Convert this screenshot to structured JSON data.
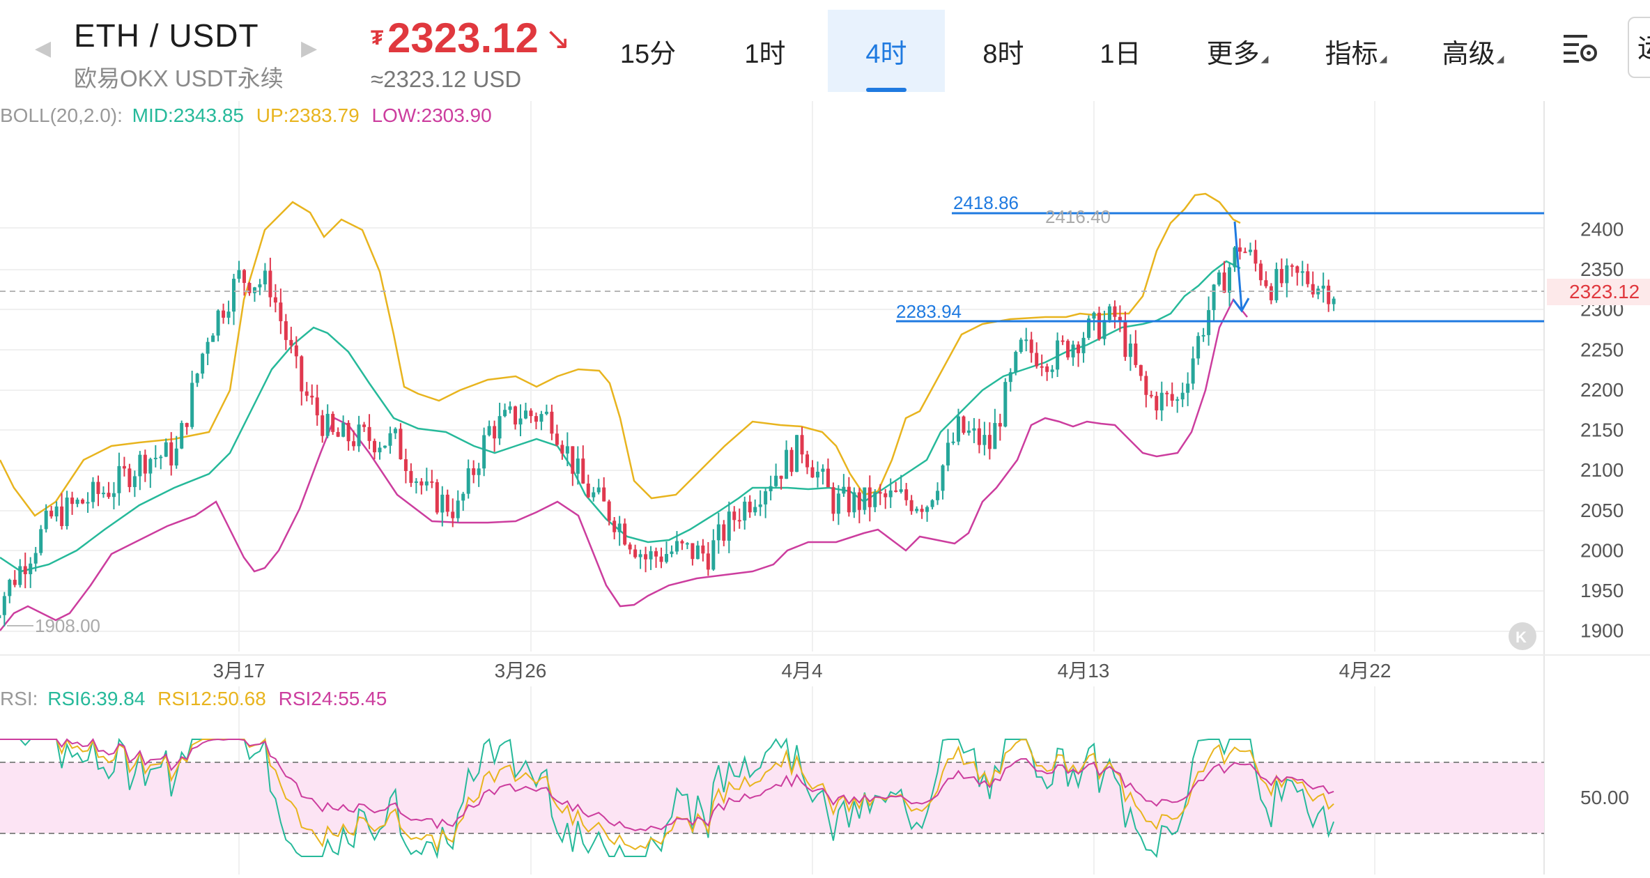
{
  "header": {
    "pair": "ETH / USDT",
    "subtitle": "欧易OKX USDT永续",
    "price": "2323.12",
    "currency_symbol": "₮",
    "price_direction": "↘",
    "price_usd": "≈2323.12 USD",
    "edge_label": "运",
    "colors": {
      "price": "#e0383e",
      "accent": "#1f7ae0"
    }
  },
  "tabs": [
    {
      "label": "15分",
      "active": false
    },
    {
      "label": "1时",
      "active": false
    },
    {
      "label": "4时",
      "active": true
    },
    {
      "label": "8时",
      "active": false
    },
    {
      "label": "1日",
      "active": false
    },
    {
      "label": "更多",
      "active": false,
      "caret": true
    },
    {
      "label": "指标",
      "active": false,
      "caret": true
    },
    {
      "label": "高级",
      "active": false,
      "caret": true
    }
  ],
  "icons": [
    "chevron-left-icon",
    "chevron-right-icon",
    "chart-settings-icon",
    "collapse-icon"
  ],
  "boll": {
    "label": "BOLL(20,2.0):",
    "mid": "MID:2343.85",
    "up": "UP:2383.79",
    "low": "LOW:2303.90",
    "colors": {
      "label": "#999999",
      "mid": "#26b99a",
      "up": "#e8b41e",
      "low": "#cc3d9e"
    }
  },
  "rsi": {
    "label": "RSI:",
    "rsi6": "RSI6:39.84",
    "rsi12": "RSI12:50.68",
    "rsi24": "RSI24:55.45",
    "level_label": "50.00",
    "colors": {
      "rsi6": "#26b99a",
      "rsi12": "#e8b41e",
      "rsi24": "#cc3d9e",
      "band": "#fce4f4"
    }
  },
  "annotations": {
    "resistance": "2418.86",
    "high_marker": "2416.40",
    "support": "2283.94",
    "low_marker": "1908.00",
    "current_tag": "2323.12"
  },
  "chart_data": {
    "type": "line",
    "title": "",
    "xlabel": "",
    "ylabel": "",
    "x_ticks": [
      "3月17",
      "3月26",
      "4月4",
      "4月13",
      "4月22"
    ],
    "y_ticks": [
      2400,
      2350,
      2300,
      2250,
      2200,
      2150,
      2100,
      2050,
      2000,
      1950,
      1900
    ],
    "ylim": [
      1878,
      2460
    ],
    "interval": "4时",
    "colors": {
      "up": "#26a69a",
      "down": "#e0384e"
    },
    "x_label_dates": [
      {
        "date": "2024-03-17",
        "label": "3月17"
      },
      {
        "date": "2024-03-26",
        "label": "3月26"
      },
      {
        "date": "2024-04-04",
        "label": "4月4"
      },
      {
        "date": "2024-04-13",
        "label": "4月13"
      },
      {
        "date": "2024-04-22",
        "label": "4月22"
      }
    ],
    "close_trend": [
      {
        "date": "2024-03-09",
        "close": 1915
      },
      {
        "date": "2024-03-11",
        "close": 2040
      },
      {
        "date": "2024-03-13",
        "close": 2080
      },
      {
        "date": "2024-03-14",
        "close": 2115
      },
      {
        "date": "2024-03-15",
        "close": 2120
      },
      {
        "date": "2024-03-16",
        "close": 2270
      },
      {
        "date": "2024-03-17",
        "close": 2340
      },
      {
        "date": "2024-03-18",
        "close": 2330
      },
      {
        "date": "2024-03-19",
        "close": 2200
      },
      {
        "date": "2024-03-20",
        "close": 2140
      },
      {
        "date": "2024-03-21",
        "close": 2140
      },
      {
        "date": "2024-03-22",
        "close": 2135
      },
      {
        "date": "2024-03-23",
        "close": 2070
      },
      {
        "date": "2024-03-24",
        "close": 2050
      },
      {
        "date": "2024-03-25",
        "close": 2150
      },
      {
        "date": "2024-03-26",
        "close": 2170
      },
      {
        "date": "2024-03-27",
        "close": 2165
      },
      {
        "date": "2024-03-28",
        "close": 2080
      },
      {
        "date": "2024-03-29",
        "close": 2040
      },
      {
        "date": "2024-03-30",
        "close": 1990
      },
      {
        "date": "2024-03-31",
        "close": 2000
      },
      {
        "date": "2024-04-01",
        "close": 1995
      },
      {
        "date": "2024-04-02",
        "close": 2050
      },
      {
        "date": "2024-04-03",
        "close": 2090
      },
      {
        "date": "2024-04-04",
        "close": 2130
      },
      {
        "date": "2024-04-05",
        "close": 2060
      },
      {
        "date": "2024-04-06",
        "close": 2060
      },
      {
        "date": "2024-04-07",
        "close": 2065
      },
      {
        "date": "2024-04-08",
        "close": 2060
      },
      {
        "date": "2024-04-09",
        "close": 2150
      },
      {
        "date": "2024-04-10",
        "close": 2130
      },
      {
        "date": "2024-04-11",
        "close": 2250
      },
      {
        "date": "2024-04-12",
        "close": 2240
      },
      {
        "date": "2024-04-13",
        "close": 2270
      },
      {
        "date": "2024-04-14",
        "close": 2290
      },
      {
        "date": "2024-04-15",
        "close": 2190
      },
      {
        "date": "2024-04-16",
        "close": 2185
      },
      {
        "date": "2024-04-17",
        "close": 2300
      },
      {
        "date": "2024-04-18",
        "close": 2380
      },
      {
        "date": "2024-04-19",
        "close": 2330
      },
      {
        "date": "2024-04-20",
        "close": 2340
      },
      {
        "date": "2024-04-21",
        "close": 2323.12
      }
    ]
  }
}
